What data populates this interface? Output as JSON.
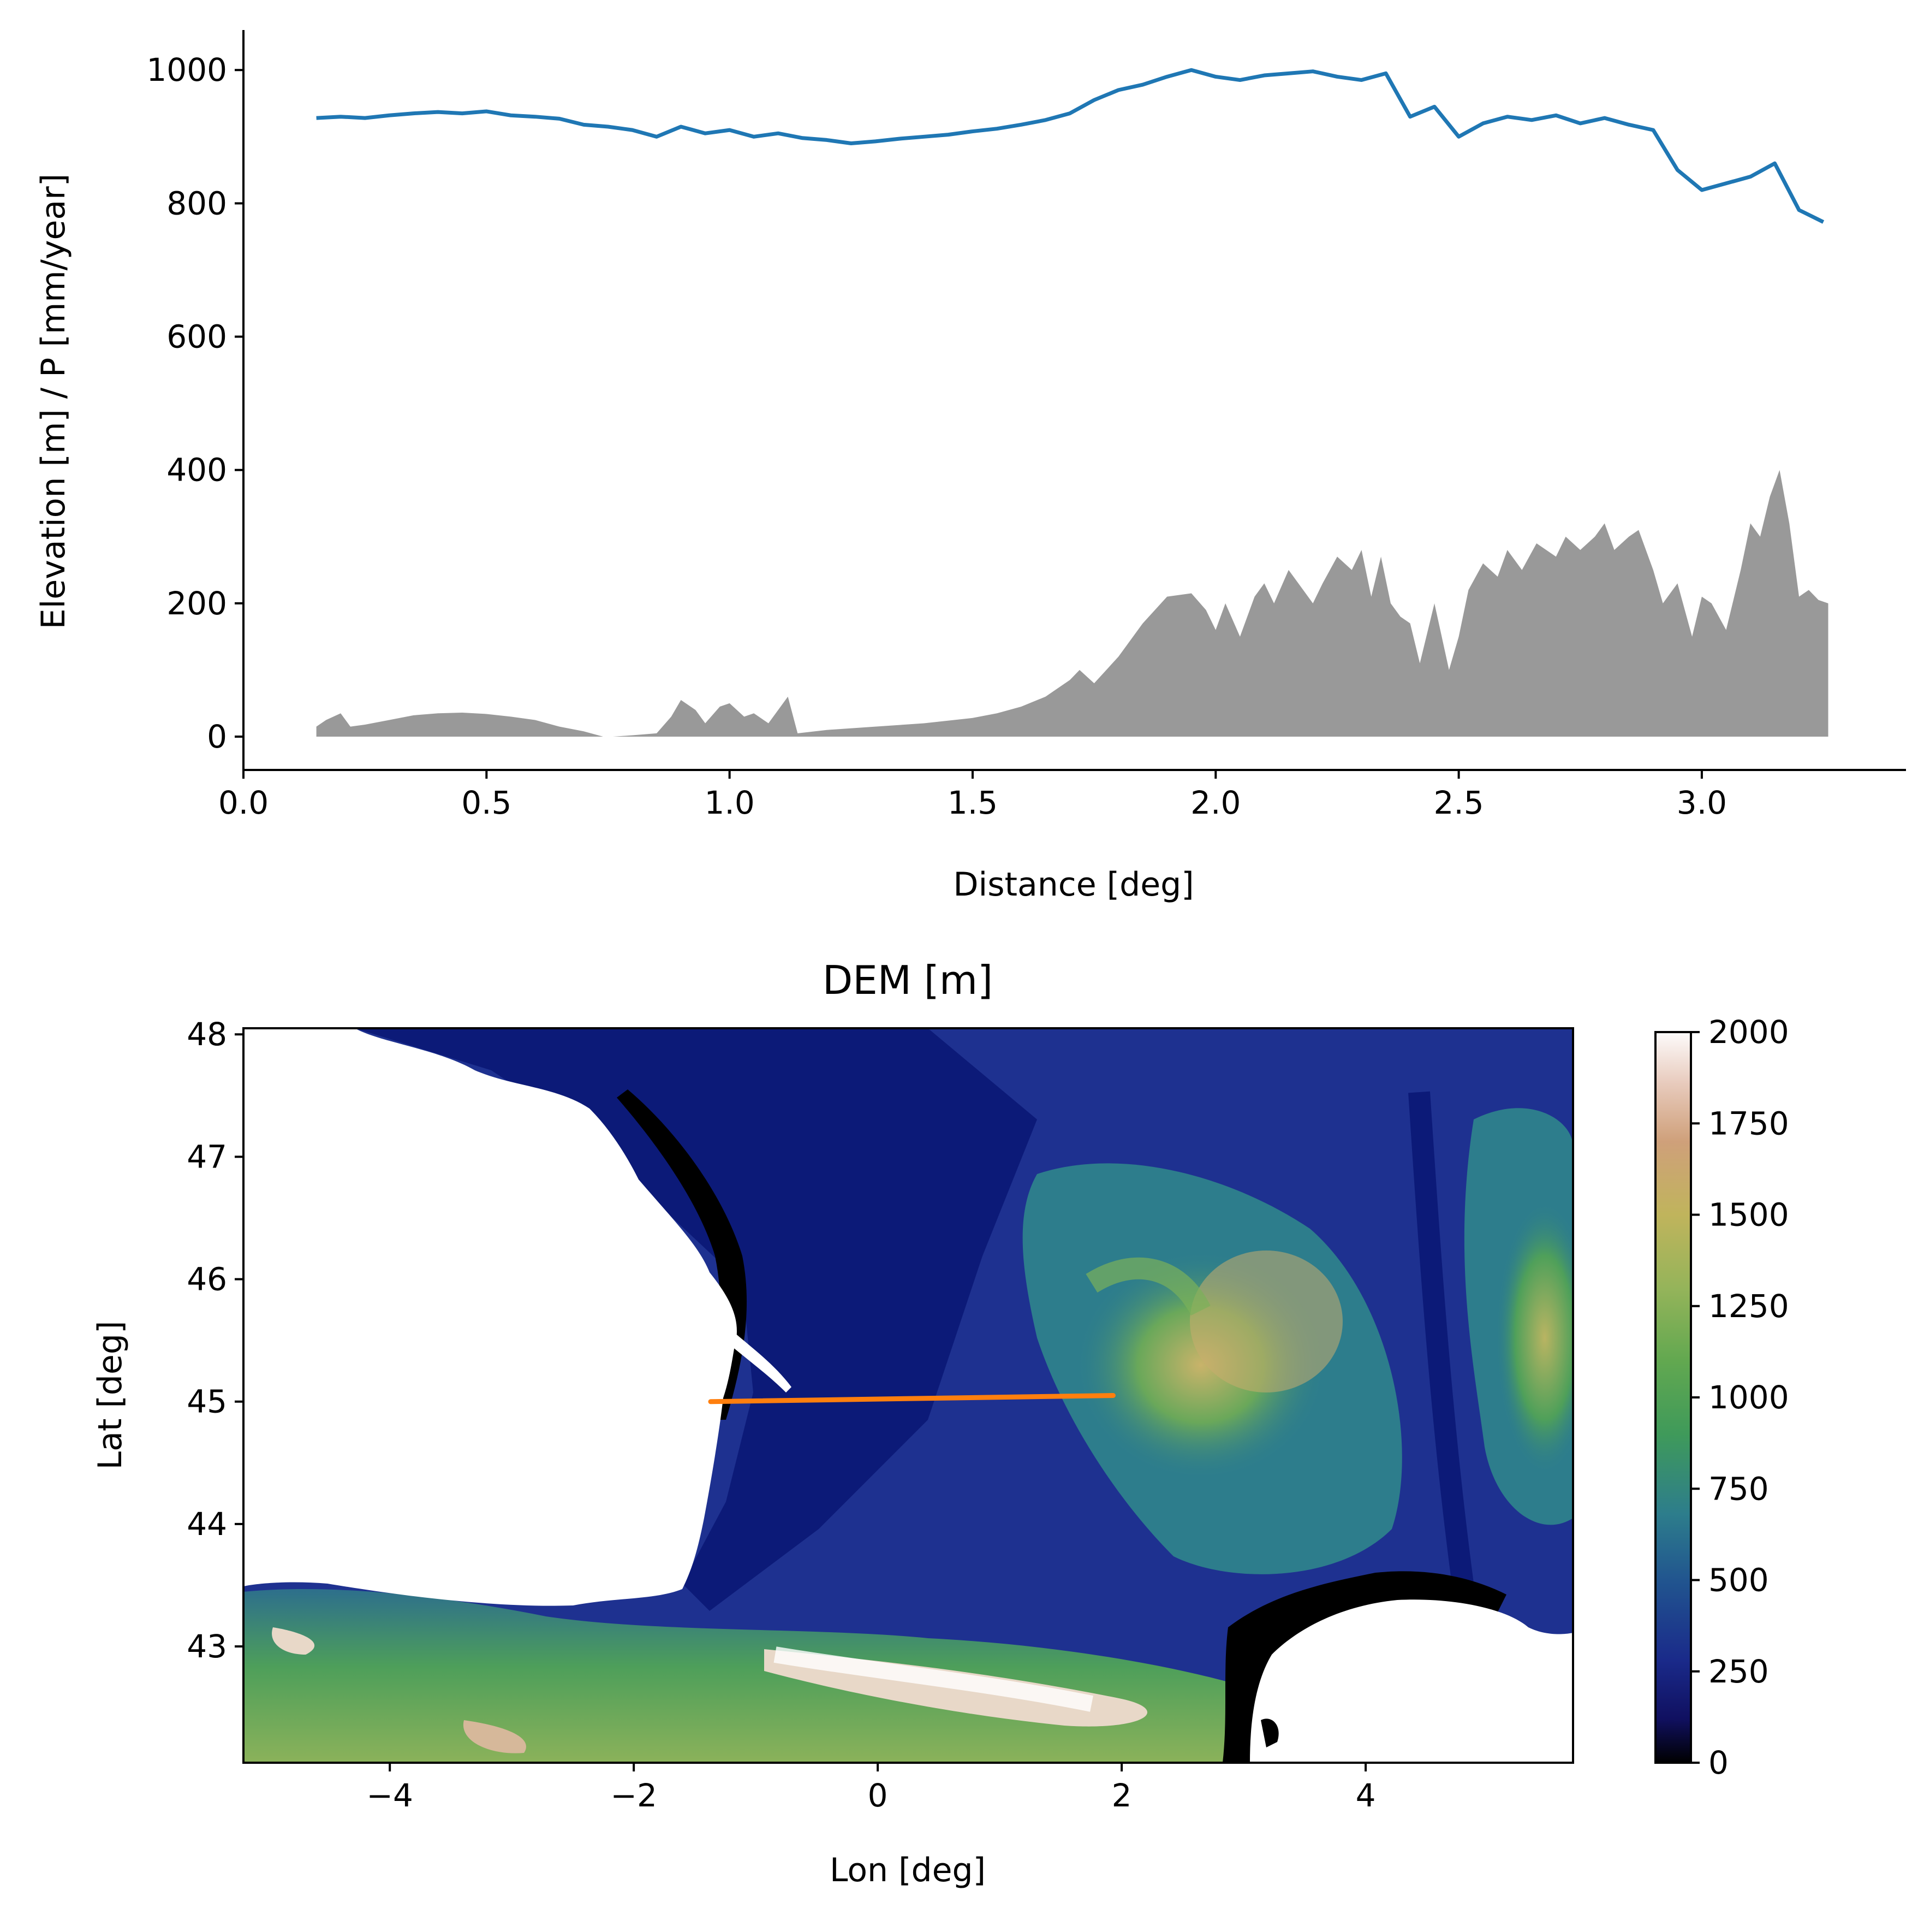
{
  "chart_data": [
    {
      "type": "area",
      "title": "",
      "xlabel": "Distance [deg]",
      "ylabel": "Elevation [m] / P [mm/year]",
      "xlim": [
        0,
        3.42
      ],
      "ylim": [
        -50,
        1060
      ],
      "xticks": [
        0.0,
        0.5,
        1.0,
        1.5,
        2.0,
        2.5,
        3.0
      ],
      "xtick_labels": [
        "0.0",
        "0.5",
        "1.0",
        "1.5",
        "2.0",
        "2.5",
        "3.0"
      ],
      "yticks": [
        0,
        200,
        400,
        600,
        800,
        1000
      ],
      "ytick_labels": [
        "0",
        "200",
        "400",
        "600",
        "800",
        "1000"
      ],
      "grid": false,
      "series": [
        {
          "kind": "line",
          "color": "#1f77b4",
          "x": [
            0.15,
            0.2,
            0.25,
            0.3,
            0.35,
            0.4,
            0.45,
            0.5,
            0.55,
            0.6,
            0.65,
            0.7,
            0.75,
            0.8,
            0.85,
            0.9,
            0.95,
            1.0,
            1.05,
            1.1,
            1.15,
            1.2,
            1.25,
            1.3,
            1.35,
            1.4,
            1.45,
            1.5,
            1.55,
            1.6,
            1.65,
            1.7,
            1.75,
            1.8,
            1.85,
            1.9,
            1.95,
            2.0,
            2.05,
            2.1,
            2.15,
            2.2,
            2.25,
            2.3,
            2.35,
            2.4,
            2.45,
            2.5,
            2.55,
            2.6,
            2.65,
            2.7,
            2.75,
            2.8,
            2.85,
            2.9,
            2.95,
            3.0,
            3.05,
            3.1,
            3.15,
            3.2,
            3.25
          ],
          "y": [
            928,
            930,
            928,
            932,
            935,
            937,
            935,
            938,
            932,
            930,
            927,
            918,
            915,
            910,
            900,
            915,
            905,
            910,
            900,
            905,
            898,
            895,
            890,
            893,
            897,
            900,
            903,
            908,
            912,
            918,
            925,
            935,
            955,
            970,
            978,
            990,
            1000,
            990,
            985,
            992,
            995,
            998,
            990,
            985,
            995,
            930,
            945,
            900,
            920,
            930,
            925,
            932,
            920,
            928,
            918,
            910,
            850,
            820,
            830,
            840,
            860,
            790,
            772
          ]
        },
        {
          "kind": "area",
          "color": "#999999",
          "x": [
            0.15,
            0.17,
            0.2,
            0.22,
            0.25,
            0.3,
            0.35,
            0.4,
            0.45,
            0.5,
            0.55,
            0.6,
            0.65,
            0.7,
            0.74,
            0.76,
            0.8,
            0.85,
            0.88,
            0.9,
            0.93,
            0.95,
            0.98,
            1.0,
            1.03,
            1.05,
            1.08,
            1.1,
            1.12,
            1.14,
            1.2,
            1.3,
            1.4,
            1.5,
            1.55,
            1.6,
            1.65,
            1.7,
            1.72,
            1.75,
            1.8,
            1.85,
            1.9,
            1.95,
            1.98,
            2.0,
            2.02,
            2.05,
            2.08,
            2.1,
            2.12,
            2.15,
            2.18,
            2.2,
            2.22,
            2.25,
            2.28,
            2.3,
            2.32,
            2.34,
            2.36,
            2.38,
            2.4,
            2.42,
            2.45,
            2.48,
            2.5,
            2.52,
            2.55,
            2.58,
            2.6,
            2.63,
            2.66,
            2.7,
            2.72,
            2.75,
            2.78,
            2.8,
            2.82,
            2.85,
            2.87,
            2.9,
            2.92,
            2.95,
            2.98,
            3.0,
            3.02,
            3.05,
            3.08,
            3.1,
            3.12,
            3.14,
            3.16,
            3.18,
            3.2,
            3.22,
            3.24,
            3.26
          ],
          "y": [
            15,
            25,
            35,
            15,
            18,
            25,
            32,
            35,
            36,
            34,
            30,
            25,
            15,
            8,
            0,
            0,
            2,
            5,
            30,
            55,
            40,
            20,
            45,
            50,
            30,
            35,
            20,
            40,
            60,
            5,
            10,
            15,
            20,
            28,
            35,
            45,
            60,
            85,
            100,
            80,
            120,
            170,
            210,
            215,
            190,
            160,
            200,
            150,
            210,
            230,
            200,
            250,
            220,
            200,
            230,
            270,
            250,
            280,
            210,
            270,
            200,
            180,
            170,
            110,
            200,
            100,
            150,
            220,
            260,
            240,
            280,
            250,
            290,
            270,
            300,
            280,
            300,
            320,
            280,
            300,
            310,
            250,
            200,
            230,
            150,
            210,
            200,
            160,
            250,
            320,
            300,
            360,
            400,
            320,
            210,
            220,
            205,
            200
          ]
        }
      ]
    },
    {
      "type": "heatmap",
      "title": "DEM [m]",
      "xlabel": "Lon [deg]",
      "ylabel": "Lat [deg]",
      "xlim": [
        -5.2,
        5.7
      ],
      "ylim": [
        42.05,
        48.05
      ],
      "xticks": [
        -4,
        -2,
        0,
        2,
        4
      ],
      "xtick_labels": [
        "−4",
        "−2",
        "0",
        "2",
        "4"
      ],
      "yticks": [
        43,
        44,
        45,
        46,
        47,
        48
      ],
      "ytick_labels": [
        "43",
        "44",
        "45",
        "46",
        "47",
        "48"
      ],
      "colorbar": {
        "ticks": [
          0,
          250,
          500,
          750,
          1000,
          1250,
          1500,
          1750,
          2000
        ],
        "tick_labels": [
          "0",
          "250",
          "500",
          "750",
          "1000",
          "1250",
          "1500",
          "1750",
          "2000"
        ],
        "range": [
          0,
          2000
        ],
        "colormap": "gist_earth"
      },
      "transect": {
        "color": "#ff7f0e",
        "lon": [
          -1.37,
          1.93
        ],
        "lat": [
          45.0,
          45.05
        ]
      }
    }
  ]
}
